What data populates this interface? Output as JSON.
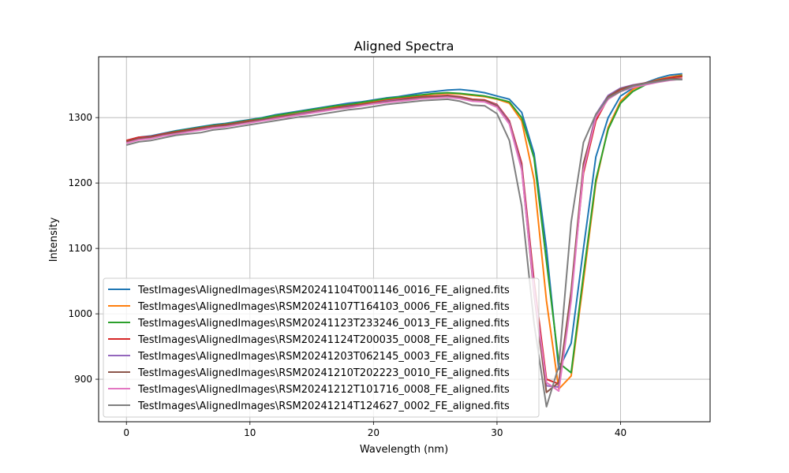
{
  "chart_data": {
    "type": "line",
    "title": "Aligned Spectra",
    "xlabel": "Wavelength (nm)",
    "ylabel": "Intensity",
    "xlim": [
      -2.25,
      47.25
    ],
    "ylim": [
      835,
      1393
    ],
    "xticks": [
      0,
      10,
      20,
      30,
      40
    ],
    "yticks": [
      900,
      1000,
      1100,
      1200,
      1300
    ],
    "grid": true,
    "legend_position": "lower-left",
    "x": [
      0,
      1,
      2,
      3,
      4,
      5,
      6,
      7,
      8,
      9,
      10,
      11,
      12,
      13,
      14,
      15,
      16,
      17,
      18,
      19,
      20,
      21,
      22,
      23,
      24,
      25,
      26,
      27,
      28,
      29,
      30,
      31,
      32,
      33,
      34,
      35,
      36,
      37,
      38,
      39,
      40,
      41,
      42,
      43,
      44,
      45
    ],
    "series": [
      {
        "name": "TestImages\\AlignedImages\\RSM20241104T001146_0016_FE_aligned.fits",
        "color": "#1f77b4",
        "values": [
          1265,
          1270,
          1272,
          1276,
          1280,
          1283,
          1286,
          1289,
          1291,
          1294,
          1297,
          1300,
          1304,
          1307,
          1310,
          1313,
          1316,
          1319,
          1322,
          1324,
          1327,
          1330,
          1332,
          1335,
          1338,
          1340,
          1342,
          1343,
          1341,
          1338,
          1333,
          1328,
          1308,
          1245,
          1100,
          915,
          955,
          1100,
          1240,
          1300,
          1333,
          1345,
          1353,
          1360,
          1365,
          1367
        ]
      },
      {
        "name": "TestImages\\AlignedImages\\RSM20241107T164103_0006_FE_aligned.fits",
        "color": "#ff7f0e",
        "values": [
          1265,
          1269,
          1271,
          1274,
          1278,
          1281,
          1284,
          1287,
          1290,
          1292,
          1295,
          1298,
          1302,
          1305,
          1308,
          1311,
          1314,
          1317,
          1320,
          1322,
          1325,
          1328,
          1330,
          1332,
          1334,
          1336,
          1337,
          1336,
          1334,
          1332,
          1328,
          1322,
          1295,
          1205,
          1020,
          885,
          905,
          1050,
          1200,
          1285,
          1325,
          1343,
          1352,
          1358,
          1362,
          1365
        ]
      },
      {
        "name": "TestImages\\AlignedImages\\RSM20241123T233246_0013_FE_aligned.fits",
        "color": "#2ca02c",
        "values": [
          1264,
          1269,
          1271,
          1275,
          1279,
          1282,
          1285,
          1288,
          1290,
          1293,
          1296,
          1299,
          1303,
          1306,
          1309,
          1312,
          1315,
          1318,
          1320,
          1323,
          1326,
          1329,
          1331,
          1333,
          1335,
          1337,
          1338,
          1337,
          1335,
          1333,
          1329,
          1324,
          1300,
          1238,
          1080,
          925,
          910,
          1060,
          1205,
          1282,
          1322,
          1340,
          1350,
          1357,
          1361,
          1364
        ]
      },
      {
        "name": "TestImages\\AlignedImages\\RSM20241124T200035_0008_FE_aligned.fits",
        "color": "#d62728",
        "values": [
          1265,
          1270,
          1271,
          1275,
          1278,
          1281,
          1284,
          1287,
          1289,
          1292,
          1295,
          1297,
          1300,
          1303,
          1306,
          1309,
          1312,
          1315,
          1318,
          1320,
          1323,
          1326,
          1328,
          1330,
          1332,
          1333,
          1334,
          1332,
          1328,
          1327,
          1320,
          1295,
          1230,
          1050,
          900,
          893,
          1030,
          1215,
          1295,
          1330,
          1343,
          1348,
          1353,
          1357,
          1361,
          1363
        ]
      },
      {
        "name": "TestImages\\AlignedImages\\RSM20241203T062145_0003_FE_aligned.fits",
        "color": "#9467bd",
        "values": [
          1262,
          1268,
          1270,
          1273,
          1277,
          1280,
          1283,
          1286,
          1288,
          1291,
          1294,
          1297,
          1300,
          1303,
          1306,
          1309,
          1312,
          1314,
          1317,
          1319,
          1322,
          1325,
          1327,
          1329,
          1331,
          1332,
          1333,
          1331,
          1327,
          1326,
          1319,
          1293,
          1225,
          1040,
          890,
          888,
          1025,
          1225,
          1305,
          1334,
          1345,
          1350,
          1353,
          1356,
          1358,
          1358
        ]
      },
      {
        "name": "TestImages\\AlignedImages\\RSM20241210T202223_0010_FE_aligned.fits",
        "color": "#8c564b",
        "values": [
          1263,
          1268,
          1270,
          1274,
          1277,
          1280,
          1283,
          1286,
          1288,
          1291,
          1294,
          1297,
          1300,
          1303,
          1305,
          1308,
          1311,
          1314,
          1316,
          1319,
          1322,
          1324,
          1326,
          1329,
          1331,
          1332,
          1333,
          1331,
          1327,
          1326,
          1318,
          1291,
          1222,
          1030,
          880,
          895,
          1035,
          1230,
          1300,
          1332,
          1344,
          1349,
          1353,
          1357,
          1359,
          1360
        ]
      },
      {
        "name": "TestImages\\AlignedImages\\RSM20241212T101716_0008_FE_aligned.fits",
        "color": "#e377c2",
        "values": [
          1261,
          1266,
          1268,
          1272,
          1275,
          1278,
          1281,
          1284,
          1286,
          1289,
          1292,
          1295,
          1298,
          1301,
          1304,
          1307,
          1310,
          1313,
          1315,
          1318,
          1321,
          1323,
          1325,
          1327,
          1329,
          1330,
          1331,
          1329,
          1325,
          1324,
          1316,
          1290,
          1220,
          1035,
          895,
          882,
          1020,
          1220,
          1300,
          1328,
          1340,
          1346,
          1350,
          1354,
          1357,
          1359
        ]
      },
      {
        "name": "TestImages\\AlignedImages\\RSM20241214T124627_0002_FE_aligned.fits",
        "color": "#7f7f7f",
        "values": [
          1258,
          1263,
          1265,
          1269,
          1273,
          1275,
          1277,
          1281,
          1283,
          1286,
          1289,
          1292,
          1295,
          1298,
          1301,
          1303,
          1306,
          1309,
          1312,
          1314,
          1317,
          1320,
          1322,
          1324,
          1326,
          1327,
          1328,
          1325,
          1319,
          1318,
          1306,
          1265,
          1165,
          985,
          858,
          920,
          1140,
          1262,
          1305,
          1330,
          1340,
          1348,
          1352,
          1355,
          1358,
          1358
        ]
      }
    ]
  }
}
